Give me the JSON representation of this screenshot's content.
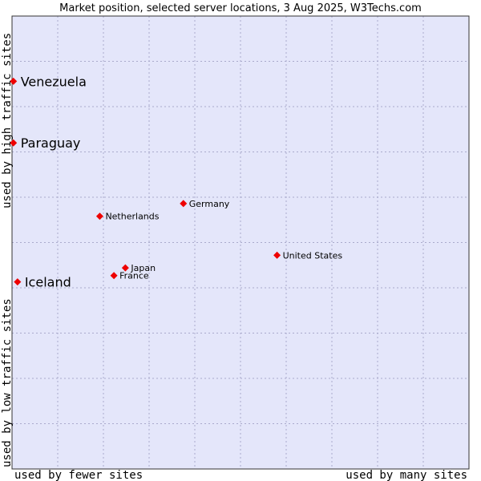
{
  "chart_data": {
    "type": "scatter",
    "title": "Market position, selected server locations, 3 Aug 2025, W3Techs.com",
    "x_axis": {
      "label_low": "used by fewer sites",
      "label_high": "used by many sites"
    },
    "y_axis": {
      "label_low": "used by low traffic sites",
      "label_high": "used by high traffic sites"
    },
    "xlim": [
      0,
      10
    ],
    "ylim": [
      0,
      10
    ],
    "grid": true,
    "colors": {
      "background": "#e4e6fa",
      "point": "#ee0000",
      "grid": "#aaaacc",
      "frame": "#333333"
    },
    "points": [
      {
        "name": "Venezuela",
        "x": 0.03,
        "y": 8.56,
        "highlight": true
      },
      {
        "name": "Paraguay",
        "x": 0.03,
        "y": 7.2,
        "highlight": true
      },
      {
        "name": "Germany",
        "x": 3.75,
        "y": 5.86,
        "highlight": false
      },
      {
        "name": "Netherlands",
        "x": 1.92,
        "y": 5.58,
        "highlight": false
      },
      {
        "name": "United States",
        "x": 5.8,
        "y": 4.72,
        "highlight": false
      },
      {
        "name": "Japan",
        "x": 2.48,
        "y": 4.44,
        "highlight": false
      },
      {
        "name": "France",
        "x": 2.23,
        "y": 4.27,
        "highlight": false
      },
      {
        "name": "Iceland",
        "x": 0.12,
        "y": 4.13,
        "highlight": true
      }
    ]
  }
}
